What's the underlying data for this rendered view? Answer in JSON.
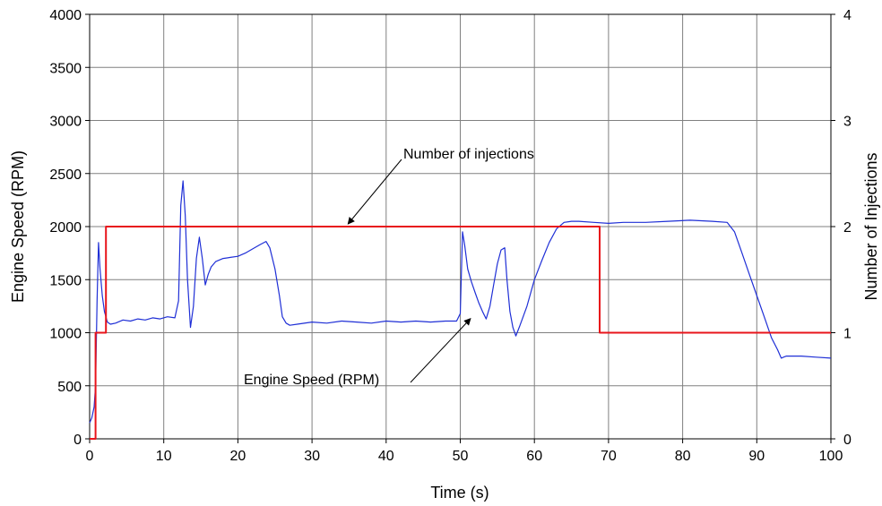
{
  "chart_data": {
    "type": "line",
    "title": "",
    "xlabel": "Time (s)",
    "ylabel": "Engine Speed (RPM)",
    "y2label": "Number of Injections",
    "xlim": [
      0,
      100
    ],
    "ylim": [
      0,
      4000
    ],
    "y2lim": [
      0,
      4
    ],
    "xticks": [
      0,
      10,
      20,
      30,
      40,
      50,
      60,
      70,
      80,
      90,
      100
    ],
    "yticks": [
      0,
      500,
      1000,
      1500,
      2000,
      2500,
      3000,
      3500,
      4000
    ],
    "y2ticks": [
      0,
      1,
      2,
      3,
      4
    ],
    "grid": true,
    "legend": "none",
    "colors": {
      "engine_speed": "#1f2fd6",
      "injections": "#e8141b",
      "grid": "#808080"
    },
    "series": [
      {
        "key": "engine_speed",
        "axis": "left",
        "x": [
          0,
          0.3,
          0.6,
          0.8,
          1.0,
          1.2,
          1.4,
          1.7,
          2.0,
          2.4,
          2.8,
          3.5,
          4.5,
          5.5,
          6.5,
          7.5,
          8.5,
          9.5,
          10.5,
          11.5,
          12.0,
          12.3,
          12.6,
          12.9,
          13.2,
          13.6,
          14.0,
          14.4,
          14.8,
          15.2,
          15.6,
          16.0,
          16.4,
          17.0,
          18.0,
          19.0,
          20.0,
          21.0,
          22.0,
          23.0,
          23.8,
          24.3,
          25.0,
          25.6,
          26.0,
          26.5,
          27.0,
          28.0,
          30.0,
          32.0,
          34.0,
          36.0,
          38.0,
          40.0,
          42.0,
          44.0,
          46.0,
          48.0,
          49.5,
          50.0,
          50.3,
          50.6,
          51.0,
          51.5,
          52.0,
          52.5,
          53.0,
          53.5,
          54.0,
          54.5,
          55.0,
          55.5,
          56.0,
          56.3,
          56.7,
          57.1,
          57.5,
          58.0,
          59.0,
          60.0,
          61.0,
          62.0,
          63.0,
          64.0,
          65.0,
          66.0,
          68.0,
          70.0,
          72.0,
          75.0,
          78.0,
          81.0,
          84.0,
          86.0,
          87.0,
          88.0,
          89.0,
          90.0,
          91.0,
          92.0,
          92.8,
          93.3,
          93.6,
          94.0,
          96.0,
          98.0,
          100.0
        ],
        "values": [
          150,
          200,
          300,
          500,
          1300,
          1850,
          1600,
          1350,
          1200,
          1100,
          1080,
          1090,
          1120,
          1110,
          1130,
          1120,
          1140,
          1130,
          1150,
          1140,
          1300,
          2200,
          2430,
          2100,
          1500,
          1050,
          1250,
          1700,
          1900,
          1700,
          1450,
          1550,
          1620,
          1670,
          1700,
          1710,
          1720,
          1750,
          1790,
          1830,
          1860,
          1800,
          1600,
          1350,
          1150,
          1090,
          1070,
          1080,
          1100,
          1090,
          1110,
          1100,
          1090,
          1110,
          1100,
          1110,
          1100,
          1110,
          1110,
          1180,
          1950,
          1820,
          1600,
          1480,
          1380,
          1280,
          1200,
          1130,
          1250,
          1450,
          1650,
          1780,
          1800,
          1500,
          1200,
          1050,
          970,
          1060,
          1250,
          1500,
          1680,
          1850,
          1980,
          2040,
          2050,
          2050,
          2040,
          2030,
          2040,
          2040,
          2050,
          2060,
          2050,
          2040,
          1950,
          1750,
          1550,
          1350,
          1150,
          950,
          840,
          760,
          770,
          780,
          780,
          770,
          760
        ]
      },
      {
        "key": "injections",
        "axis": "right",
        "x": [
          0,
          0.8,
          0.8,
          2.2,
          2.2,
          68.8,
          68.8,
          100
        ],
        "values": [
          0,
          0,
          1,
          1,
          2,
          2,
          1,
          1
        ]
      }
    ],
    "annotations": [
      {
        "text": "Number of injections",
        "x": 34.5,
        "y": 2000
      },
      {
        "text": "Engine Speed (RPM)",
        "x": 51.5,
        "y": 1150
      }
    ]
  }
}
